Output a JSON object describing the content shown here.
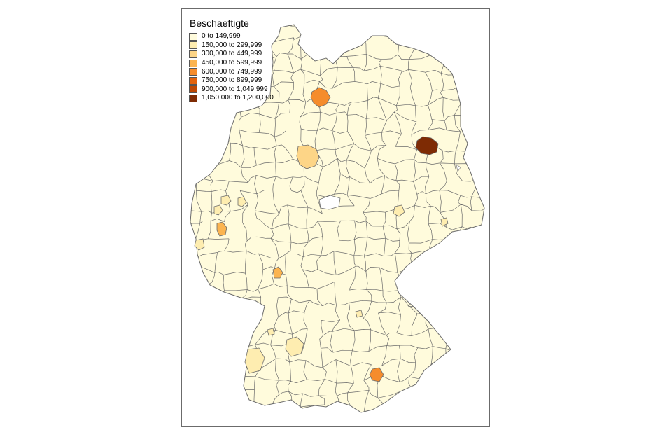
{
  "legend": {
    "title": "Beschaeftigte",
    "classes": [
      {
        "label": "0 to 149,999",
        "color": "#FFFBDC"
      },
      {
        "label": "150,000 to 299,999",
        "color": "#FEEDB0"
      },
      {
        "label": "300,000 to 449,999",
        "color": "#FDD587"
      },
      {
        "label": "450,000 to 599,999",
        "color": "#FBB450"
      },
      {
        "label": "600,000 to 749,999",
        "color": "#F58C2C"
      },
      {
        "label": "750,000 to 899,999",
        "color": "#E3620C"
      },
      {
        "label": "900,000 to 1,049,999",
        "color": "#BD4703"
      },
      {
        "label": "1,050,000 to 1,200,000",
        "color": "#7E2B04"
      }
    ]
  },
  "colors": {
    "boundary": "#6b6b6b",
    "water": "#ffffff"
  }
}
